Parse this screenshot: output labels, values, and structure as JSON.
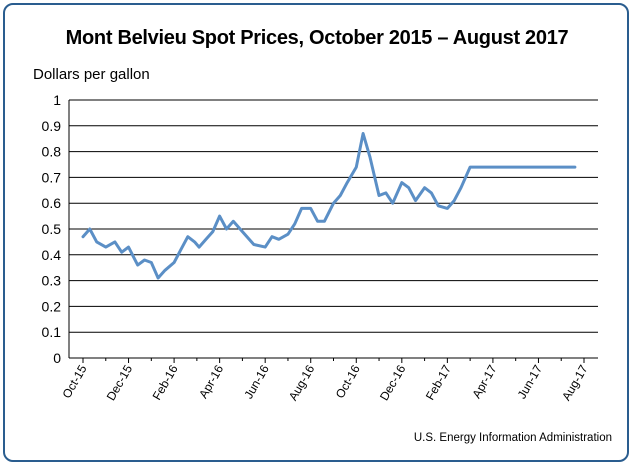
{
  "chart_data": {
    "type": "line",
    "title": "Mont Belvieu Spot Prices, October 2015 – August 2017",
    "ylabel": "Dollars per gallon",
    "xlabel": "",
    "ylim": [
      0,
      1
    ],
    "yticks": [
      "0",
      "0.1",
      "0.2",
      "0.3",
      "0.4",
      "0.5",
      "0.6",
      "0.7",
      "0.8",
      "0.9",
      "1"
    ],
    "xtick_labels": [
      "Oct-15",
      "Dec-15",
      "Feb-16",
      "Apr-16",
      "Jun-16",
      "Aug-16",
      "Oct-16",
      "Dec-16",
      "Feb-17",
      "Apr-17",
      "Jun-17",
      "Aug-17"
    ],
    "grid": "horizontal",
    "color": "#5b8fc6",
    "x": [
      0,
      0.3,
      0.6,
      1,
      1.4,
      1.7,
      2,
      2.4,
      2.7,
      3,
      3.3,
      3.6,
      4,
      4.3,
      4.6,
      4.9,
      5.1,
      5.4,
      5.7,
      6,
      6.3,
      6.6,
      7,
      7.5,
      8,
      8.3,
      8.6,
      9,
      9.3,
      9.6,
      10,
      10.3,
      10.6,
      11,
      11.3,
      11.6,
      12,
      12.3,
      12.6,
      13,
      13.3,
      13.6,
      14,
      14.3,
      14.6,
      15,
      15.3,
      15.6,
      16,
      16.3,
      16.6,
      17,
      17.3,
      17.6,
      18,
      18.3,
      18.6,
      19,
      19.3,
      19.6,
      20,
      20.3,
      20.6,
      21,
      21.3,
      21.6,
      22
    ],
    "values": [
      0.47,
      0.5,
      0.45,
      0.43,
      0.45,
      0.41,
      0.43,
      0.36,
      0.38,
      0.37,
      0.31,
      0.34,
      0.37,
      0.42,
      0.47,
      0.45,
      0.43,
      0.46,
      0.49,
      0.55,
      0.5,
      0.53,
      0.49,
      0.44,
      0.43,
      0.47,
      0.46,
      0.48,
      0.52,
      0.58,
      0.58,
      0.53,
      0.53,
      0.6,
      0.63,
      0.68,
      0.74,
      0.87,
      0.78,
      0.63,
      0.64,
      0.6,
      0.68,
      0.66,
      0.61,
      0.66,
      0.64,
      0.59,
      0.58,
      0.61,
      0.66,
      0.74,
      0.74,
      0.74,
      0.74,
      0.74,
      0.74,
      0.74,
      0.74,
      0.74,
      0.74,
      0.74,
      0.74,
      0.74,
      0.74,
      0.74,
      0.74
    ]
  },
  "source": "U.S. Energy Information Administration"
}
